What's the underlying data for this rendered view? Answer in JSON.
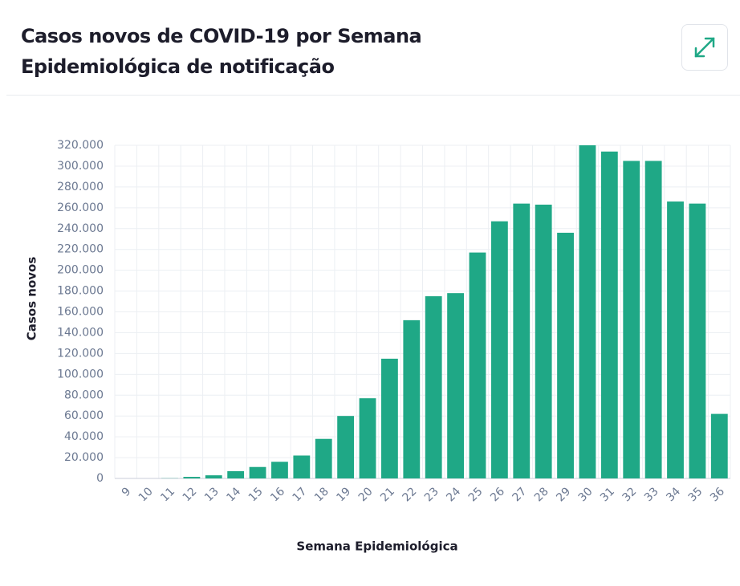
{
  "chart_data": {
    "type": "bar",
    "title": "Casos novos de COVID-19 por Semana Epidemiológica de notificação",
    "x_label": "Semana Epidemiológica",
    "y_label": "Casos novos",
    "categories": [
      "9",
      "10",
      "11",
      "12",
      "13",
      "14",
      "15",
      "16",
      "17",
      "18",
      "19",
      "20",
      "21",
      "22",
      "23",
      "24",
      "25",
      "26",
      "27",
      "28",
      "29",
      "30",
      "31",
      "32",
      "33",
      "34",
      "35",
      "36"
    ],
    "values": [
      0,
      0,
      200,
      1500,
      3000,
      7000,
      11000,
      16000,
      22000,
      38000,
      60000,
      77000,
      115000,
      152000,
      175000,
      178000,
      217000,
      247000,
      264000,
      263000,
      236000,
      320000,
      314000,
      305000,
      305000,
      266000,
      264000,
      62000
    ],
    "color": "#1fa886",
    "ylim": [
      0,
      320000
    ],
    "yticks": [
      0,
      {
        "value": 20000,
        "label": "20.000"
      },
      {
        "value": 40000,
        "label": "40.000"
      },
      {
        "value": 60000,
        "label": "60.000"
      },
      {
        "value": 80000,
        "label": "80.000"
      },
      {
        "value": 100000,
        "label": "100.000"
      },
      {
        "value": 120000,
        "label": "120.000"
      },
      {
        "value": 140000,
        "label": "140.000"
      },
      {
        "value": 160000,
        "label": "160.000"
      },
      {
        "value": 180000,
        "label": "180.000"
      },
      {
        "value": 200000,
        "label": "200.000"
      },
      {
        "value": 220000,
        "label": "220.000"
      },
      {
        "value": 240000,
        "label": "240.000"
      },
      {
        "value": 260000,
        "label": "260.000"
      },
      {
        "value": 280000,
        "label": "280.000"
      },
      {
        "value": 300000,
        "label": "300.000"
      },
      {
        "value": 320000,
        "label": "320.000"
      }
    ],
    "grid": true
  }
}
